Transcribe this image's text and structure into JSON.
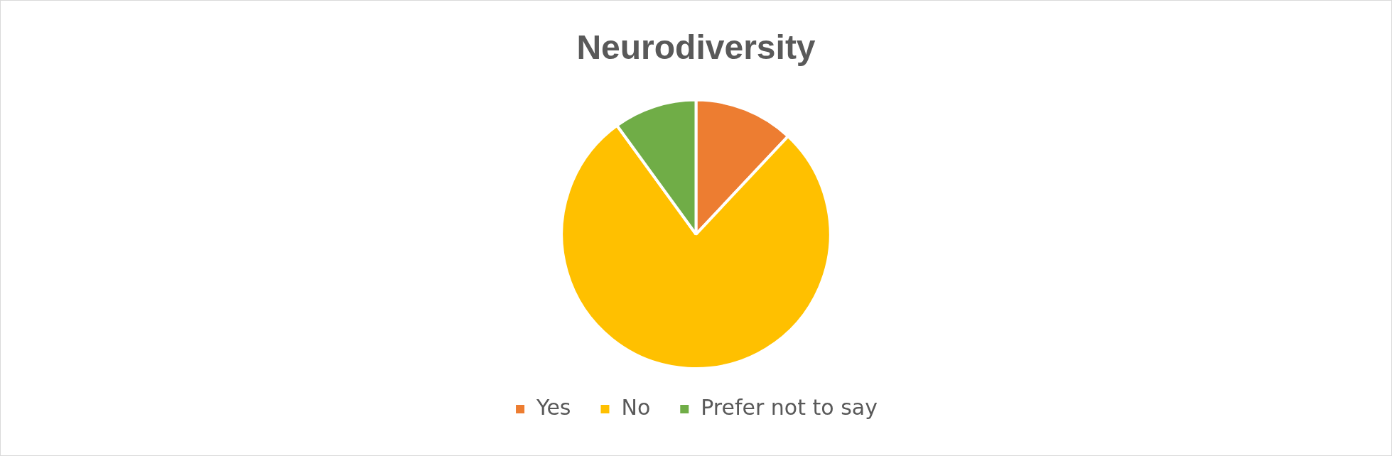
{
  "chart_data": {
    "type": "pie",
    "title": "Neurodiversity",
    "categories": [
      "Yes",
      "No",
      "Prefer not to say"
    ],
    "values": [
      12,
      78,
      10
    ],
    "colors": [
      "#ed7d31",
      "#ffc000",
      "#70ad47"
    ],
    "legend": "bottom"
  }
}
